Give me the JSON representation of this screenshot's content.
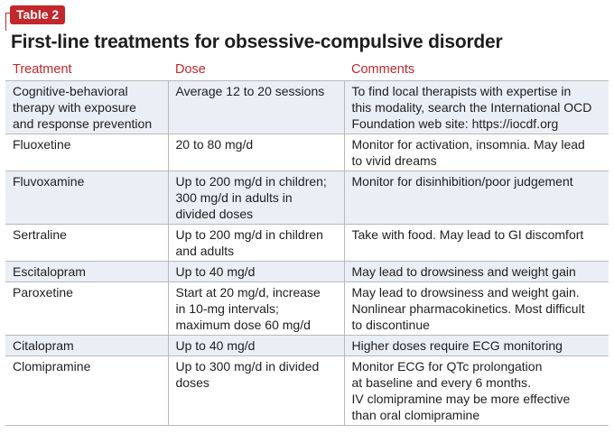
{
  "badge": "Table 2",
  "title": "First-line treatments for obsessive-compulsive disorder",
  "headers": [
    "Treatment",
    "Dose",
    "Comments"
  ],
  "rows": [
    {
      "treatment": [
        "Cognitive-behavioral",
        "therapy with exposure",
        "and response prevention"
      ],
      "dose": [
        "Average 12 to 20 sessions"
      ],
      "comments": [
        "To find local therapists with expertise in",
        "this modality, search the International OCD",
        "Foundation web site: https://iocdf.org"
      ]
    },
    {
      "treatment": [
        "Fluoxetine"
      ],
      "dose": [
        "20 to 80 mg/d"
      ],
      "comments": [
        "Monitor for activation, insomnia. May lead",
        "to vivid dreams"
      ]
    },
    {
      "treatment": [
        "Fluvoxamine"
      ],
      "dose": [
        "Up to 200 mg/d in children;",
        "300 mg/d in adults in",
        "divided doses"
      ],
      "comments": [
        "Monitor for disinhibition/poor judgement"
      ]
    },
    {
      "treatment": [
        "Sertraline"
      ],
      "dose": [
        "Up to 200 mg/d in children",
        "and adults"
      ],
      "comments": [
        "Take with food. May lead to GI discomfort"
      ]
    },
    {
      "treatment": [
        "Escitalopram"
      ],
      "dose": [
        "Up to 40 mg/d"
      ],
      "comments": [
        "May lead to drowsiness and weight gain"
      ]
    },
    {
      "treatment": [
        "Paroxetine"
      ],
      "dose": [
        "Start at 20 mg/d, increase",
        "in 10-mg intervals;",
        "maximum dose 60 mg/d"
      ],
      "comments": [
        "May lead to drowsiness and weight gain.",
        "Nonlinear pharmacokinetics. Most difficult",
        "to discontinue"
      ]
    },
    {
      "treatment": [
        "Citalopram"
      ],
      "dose": [
        "Up to 40 mg/d"
      ],
      "comments": [
        "Higher doses require ECG monitoring"
      ]
    },
    {
      "treatment": [
        "Clomipramine"
      ],
      "dose": [
        "Up to 300 mg/d in divided",
        "doses"
      ],
      "comments": [
        "Monitor ECG for QTc prolongation",
        "at baseline and every 6 months.",
        "IV clomipramine may be more effective",
        "than oral clomipramine"
      ]
    }
  ],
  "colors": {
    "accent": "#c2272d",
    "row_shade": "#eaeef5",
    "rule": "#b9b9b9"
  }
}
